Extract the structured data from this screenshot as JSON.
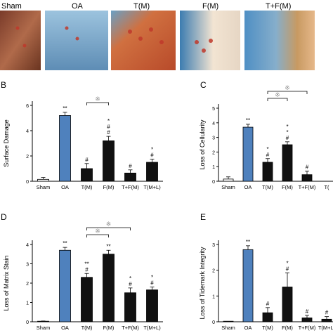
{
  "histology": {
    "labels": [
      "Sham",
      "OA",
      "T(M)",
      "F(M)",
      "T+F(M)"
    ],
    "stain_colors": {
      "cartilage": "#c0392b",
      "bone": "#5b8db8",
      "matrix": "#d7a888"
    }
  },
  "panels": {
    "B": {
      "letter": "B",
      "ylabel": "Surface Damage"
    },
    "C": {
      "letter": "C",
      "ylabel": "Loss of Cellularity"
    },
    "D": {
      "letter": "D",
      "ylabel": "Loss of Matrix Stain"
    },
    "E": {
      "letter": "E",
      "ylabel": "Loss of Tidemark Integrity"
    }
  },
  "colors": {
    "sham": "#ffffff",
    "oa": "#4f81bd",
    "treatment": "#111111",
    "bracket_star": "#888888"
  },
  "chart_data": [
    {
      "type": "bar",
      "panel": "B",
      "categories": [
        "Sham",
        "OA",
        "T(M)",
        "F(M)",
        "T+F(M)",
        "T(M+L)"
      ],
      "values": [
        0.15,
        5.2,
        1.0,
        3.2,
        0.65,
        1.5
      ],
      "errors": [
        0.15,
        0.25,
        0.4,
        0.35,
        0.25,
        0.25
      ],
      "ylim": [
        0,
        6
      ],
      "yticks": [
        0,
        2,
        4,
        6
      ],
      "ylabel": "Surface Damage",
      "sig": [
        [],
        [
          "**"
        ],
        [
          "#"
        ],
        [
          "#",
          "#",
          "*"
        ],
        [
          "#"
        ],
        [
          "#",
          "*"
        ]
      ],
      "brackets": [
        {
          "from": 2,
          "to": 3,
          "label": "※"
        }
      ]
    },
    {
      "type": "bar",
      "panel": "C",
      "categories": [
        "Sham",
        "OA",
        "T(M)",
        "F(M)",
        "T+F(M)",
        "T("
      ],
      "values": [
        0.15,
        3.7,
        1.3,
        2.5,
        0.45,
        null
      ],
      "errors": [
        0.15,
        0.2,
        0.25,
        0.2,
        0.25,
        null
      ],
      "ylim": [
        0,
        5
      ],
      "yticks": [
        0,
        1,
        2,
        3,
        4,
        5
      ],
      "ylabel": "Loss of Cellularity",
      "sig": [
        [],
        [
          "**"
        ],
        [
          "#",
          "*"
        ],
        [
          "#",
          "*",
          "*"
        ],
        [
          "#"
        ],
        []
      ],
      "brackets": [
        {
          "from": 2,
          "to": 3,
          "label": "※"
        },
        {
          "from": 2,
          "to": 4,
          "label": "※"
        }
      ]
    },
    {
      "type": "bar",
      "panel": "D",
      "categories": [
        "Sham",
        "OA",
        "T(M)",
        "F(M)",
        "T+F(M)",
        "T(M+L)"
      ],
      "values": [
        0.02,
        3.7,
        2.3,
        3.5,
        1.5,
        1.65
      ],
      "errors": [
        0.02,
        0.15,
        0.2,
        0.2,
        0.25,
        0.15
      ],
      "ylim": [
        0,
        4
      ],
      "yticks": [
        0,
        1,
        2,
        3,
        4
      ],
      "ylabel": "Loss of Matrix Stain",
      "sig": [
        [],
        [
          "**"
        ],
        [
          "#",
          "**"
        ],
        [
          "**"
        ],
        [
          "#",
          "*"
        ],
        [
          "#",
          "*"
        ]
      ],
      "brackets": [
        {
          "from": 2,
          "to": 3,
          "label": "※"
        },
        {
          "from": 2,
          "to": 4,
          "label": "※"
        }
      ]
    },
    {
      "type": "bar",
      "panel": "E",
      "categories": [
        "Sham",
        "OA",
        "T(M)",
        "F(M)",
        "T+F(M)",
        "T(M+L)"
      ],
      "values": [
        0.0,
        2.8,
        0.35,
        1.35,
        0.15,
        0.1
      ],
      "errors": [
        0.0,
        0.15,
        0.2,
        0.55,
        0.1,
        0.1
      ],
      "ylim": [
        0,
        3
      ],
      "yticks": [
        0,
        1,
        2,
        3
      ],
      "ylabel": "Loss of Tidemark Integrity",
      "sig": [
        [],
        [
          "**"
        ],
        [
          "#"
        ],
        [
          "#",
          "*"
        ],
        [
          "#"
        ],
        [
          "#"
        ]
      ],
      "brackets": []
    }
  ]
}
